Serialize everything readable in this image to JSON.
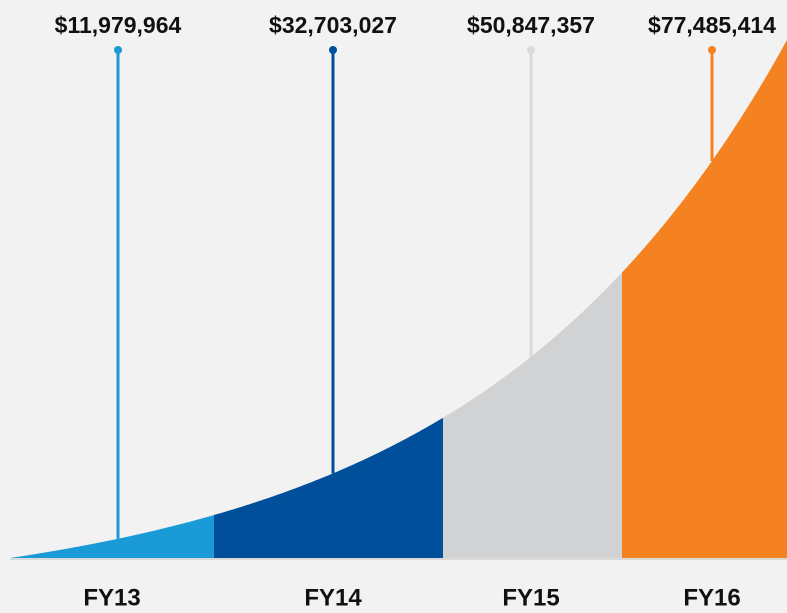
{
  "chart_data": {
    "type": "area",
    "categories": [
      "FY13",
      "FY14",
      "FY15",
      "FY16"
    ],
    "values": [
      11979964,
      32703027,
      50847357,
      77485414
    ],
    "value_labels": [
      "$11,979,964",
      "$32,703,027",
      "$50,847,357",
      "$77,485,414"
    ],
    "colors": [
      "#1a9ad6",
      "#004f9b",
      "#d1d2d4",
      "#f58220"
    ]
  }
}
